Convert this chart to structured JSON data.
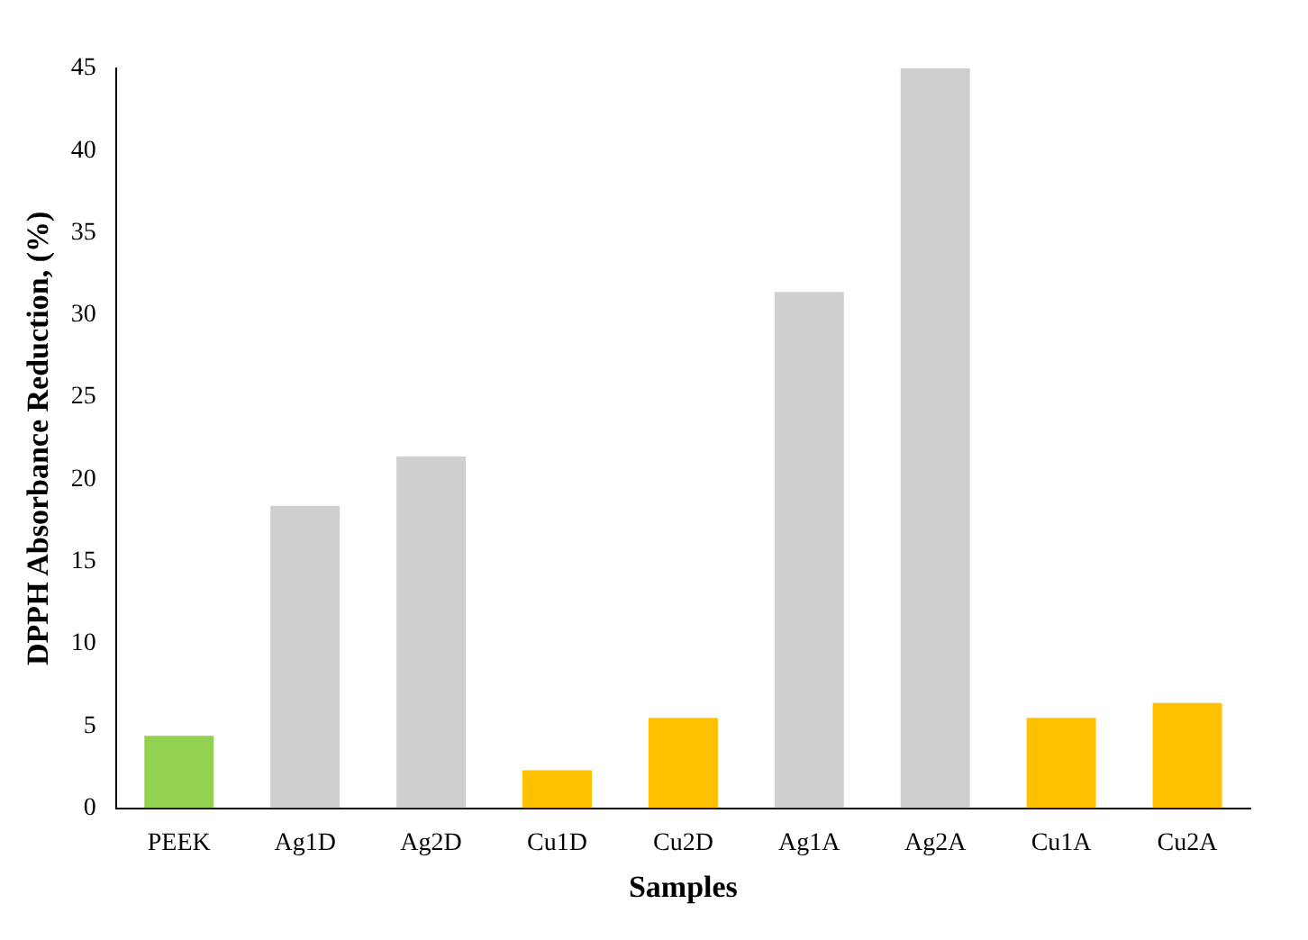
{
  "chart_data": {
    "type": "bar",
    "xlabel": "Samples",
    "ylabel": "DPPH Absorbance Reduction, (%)",
    "categories": [
      "PEEK",
      "Ag1D",
      "Ag2D",
      "Cu1D",
      "Cu2D",
      "Ag1A",
      "Ag2A",
      "Cu1A",
      "Cu2A"
    ],
    "values": [
      4.4,
      18.4,
      21.4,
      2.3,
      5.5,
      31.4,
      45,
      5.5,
      6.4
    ],
    "colors": [
      "#92d050",
      "#d0cece",
      "#d0cece",
      "#ffc000",
      "#ffc000",
      "#d0cece",
      "#d0cece",
      "#ffc000",
      "#ffc000"
    ],
    "ylim": [
      0,
      45
    ],
    "yticks": [
      0,
      5,
      10,
      15,
      20,
      25,
      30,
      35,
      40,
      45
    ],
    "grid": false,
    "legend": false
  }
}
